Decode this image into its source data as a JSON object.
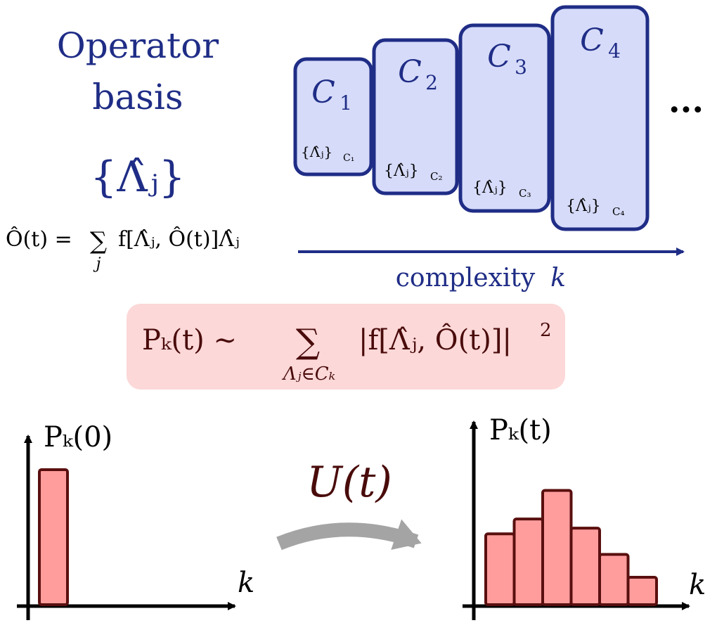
{
  "colors": {
    "navy": "#1f2d86",
    "box_fill": "#d6dbf9",
    "maroon": "#4a0b0b",
    "bar_fill": "#ff9d9d",
    "bar_stroke": "#5a0f0f",
    "formula_bg": "#fcd8d8",
    "arrow_gray": "#a4a4a4",
    "black": "#000000"
  },
  "title": {
    "line1": "Operator",
    "line2": "basis",
    "set_symbol": "{Λ̂ⱼ}"
  },
  "expansion_formula": {
    "lhs": "Ô(t) =",
    "sum": "∑",
    "sum_index": "j",
    "rhs": "f[Λ̂ⱼ, Ô(t)]Λ̂ⱼ"
  },
  "complexity_boxes": [
    {
      "label": "C",
      "sub": "1",
      "set": "{Λ̂ⱼ}",
      "set_sub": "C₁"
    },
    {
      "label": "C",
      "sub": "2",
      "set": "{Λ̂ⱼ}",
      "set_sub": "C₂"
    },
    {
      "label": "C",
      "sub": "3",
      "set": "{Λ̂ⱼ}",
      "set_sub": "C₃"
    },
    {
      "label": "C",
      "sub": "4",
      "set": "{Λ̂ⱼ}",
      "set_sub": "C₄"
    }
  ],
  "ellipsis": "···",
  "complexity_axis": {
    "text": "complexity",
    "var": "k"
  },
  "probability_formula": {
    "lhs": "Pₖ(t) ∼",
    "sum": "∑",
    "sum_index": "Λⱼ∈Cₖ",
    "rhs": "|f[Λ̂ⱼ, Ô(t)]|",
    "power": "2"
  },
  "evolution": {
    "label": "U(t)"
  },
  "chart_data": [
    {
      "type": "bar",
      "ylabel": "Pₖ(0)",
      "xlabel": "k",
      "values": [
        1.0
      ],
      "ylim": [
        0,
        1.25
      ]
    },
    {
      "type": "bar",
      "ylabel": "Pₖ(t)",
      "xlabel": "k",
      "values": [
        0.62,
        0.75,
        1.0,
        0.67,
        0.44,
        0.24
      ],
      "ylim": [
        0,
        1.6
      ]
    }
  ]
}
